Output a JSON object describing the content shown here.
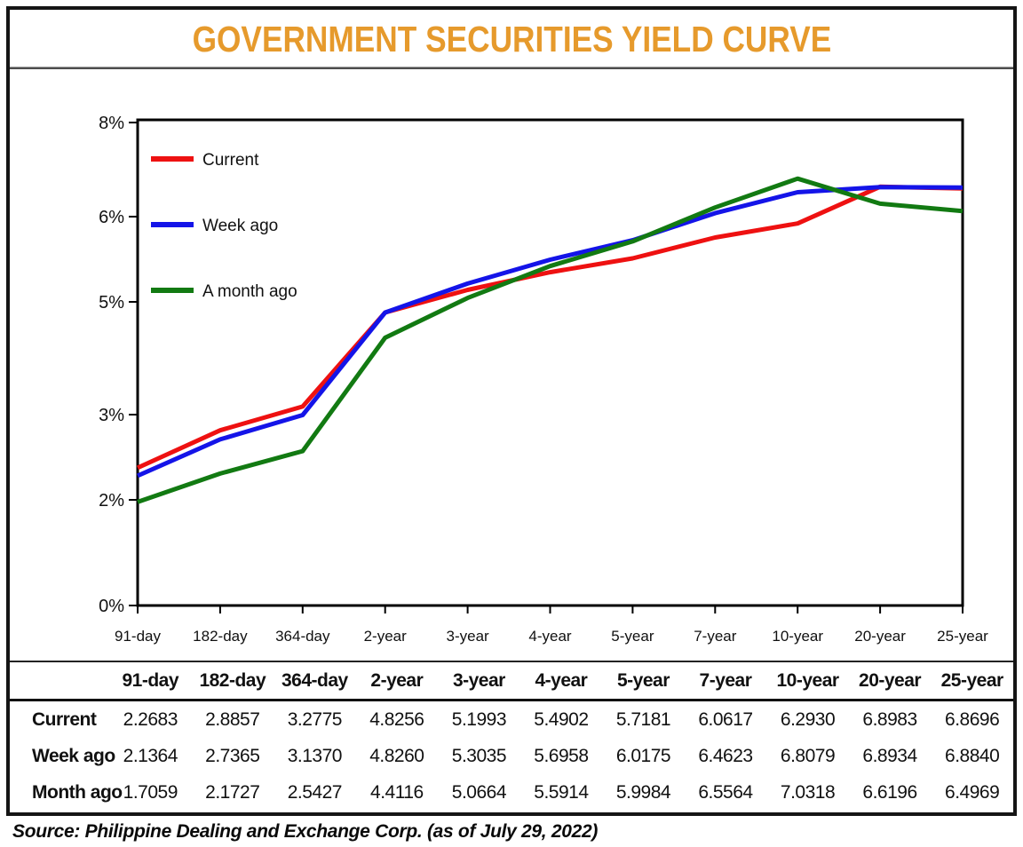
{
  "title": "GOVERNMENT SECURITIES YIELD CURVE",
  "source_note": "Source: Philippine Dealing and Exchange Corp. (as of July 29, 2022)",
  "colors": {
    "title_accent": "#E69A2C",
    "current_line": "#EE1111",
    "week_ago_line": "#1414E8",
    "month_ago_line": "#127A12",
    "axis": "#000000"
  },
  "legend": [
    {
      "label": "Current",
      "color": "#EE1111"
    },
    {
      "label": "Week ago",
      "color": "#1414E8"
    },
    {
      "label": "A month ago",
      "color": "#127A12"
    }
  ],
  "chart_data": {
    "type": "line",
    "title": "GOVERNMENT SECURITIES YIELD CURVE",
    "xlabel": "",
    "ylabel": "",
    "categories": [
      "91-day",
      "182-day",
      "364-day",
      "2-year",
      "3-year",
      "4-year",
      "5-year",
      "7-year",
      "10-year",
      "20-year",
      "25-year"
    ],
    "series": [
      {
        "name": "Current",
        "color": "#EE1111",
        "values": [
          2.2683,
          2.8857,
          3.2775,
          4.8256,
          5.1993,
          5.4902,
          5.7181,
          6.0617,
          6.293,
          6.8983,
          6.8696
        ]
      },
      {
        "name": "Week ago",
        "color": "#1414E8",
        "values": [
          2.1364,
          2.7365,
          3.137,
          4.826,
          5.3035,
          5.6958,
          6.0175,
          6.4623,
          6.8079,
          6.8934,
          6.884
        ]
      },
      {
        "name": "A month ago",
        "color": "#127A12",
        "values": [
          1.7059,
          2.1727,
          2.5427,
          4.4116,
          5.0664,
          5.5914,
          5.9984,
          6.5564,
          7.0318,
          6.6196,
          6.4969
        ]
      }
    ],
    "ylim": [
      0,
      8
    ],
    "ytick_values": [
      8,
      6,
      5,
      3,
      2,
      0
    ],
    "ytick_labels": [
      "8%",
      "6%",
      "5%",
      "3%",
      "2%",
      "0%"
    ],
    "grid": false,
    "legend_position": "top-left"
  },
  "table": {
    "columns": [
      "91-day",
      "182-day",
      "364-day",
      "2-year",
      "3-year",
      "4-year",
      "5-year",
      "7-year",
      "10-year",
      "20-year",
      "25-year"
    ],
    "rows": [
      {
        "label": "Current",
        "values": [
          "2.2683",
          "2.8857",
          "3.2775",
          "4.8256",
          "5.1993",
          "5.4902",
          "5.7181",
          "6.0617",
          "6.2930",
          "6.8983",
          "6.8696"
        ]
      },
      {
        "label": "Week ago",
        "values": [
          "2.1364",
          "2.7365",
          "3.1370",
          "4.8260",
          "5.3035",
          "5.6958",
          "6.0175",
          "6.4623",
          "6.8079",
          "6.8934",
          "6.8840"
        ]
      },
      {
        "label": "Month ago",
        "values": [
          "1.7059",
          "2.1727",
          "2.5427",
          "4.4116",
          "5.0664",
          "5.5914",
          "5.9984",
          "6.5564",
          "7.0318",
          "6.6196",
          "6.4969"
        ]
      }
    ]
  }
}
